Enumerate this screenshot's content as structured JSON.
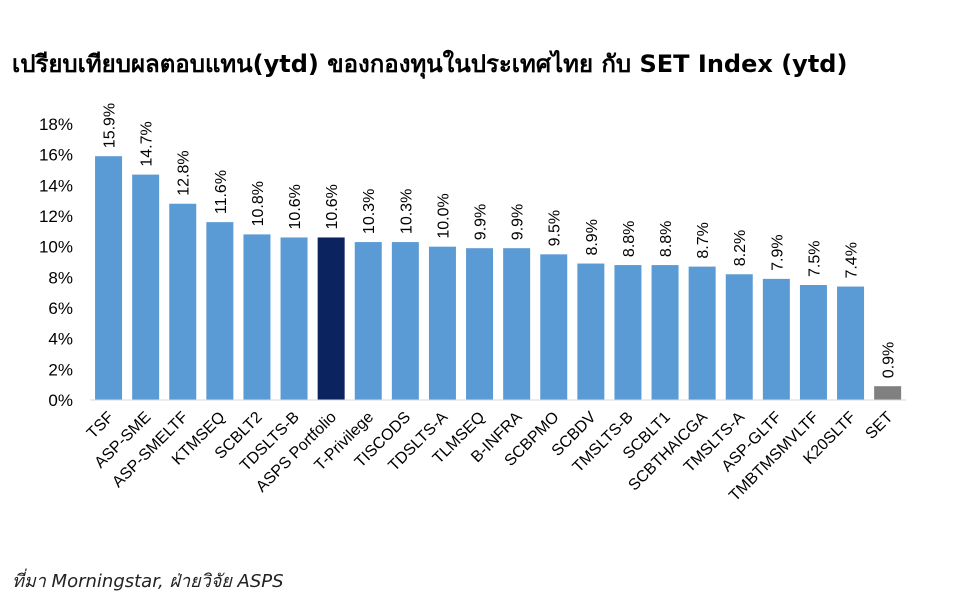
{
  "title": "เปรียบเทียบผลตอบแทน(ytd) ของกองทุนในประเทศไทย กับ SET Index (ytd)",
  "source": "ที่มา Morningstar, ฝ่ายวิจัย ASPS",
  "colors": {
    "bar": "#5b9bd5",
    "highlight": "#0b2460",
    "highlight_label": "#1f3d7a",
    "set": "#808080"
  },
  "chart_data": {
    "type": "bar",
    "categories": [
      "TSF",
      "ASP-SME",
      "ASP-SMELTF",
      "KTMSEQ",
      "SCBLT2",
      "TDSLTS-B",
      "ASPS Portfolio",
      "T-Privilege",
      "TISCODS",
      "TDSLTS-A",
      "TLMSEQ",
      "B-INFRA",
      "SCBPMO",
      "SCBDV",
      "TMSLTS-B",
      "SCBLT1",
      "SCBTHAICGA",
      "TMSLTS-A",
      "ASP-GLTF",
      "TMBTMSMVLTF",
      "K20SLTF",
      "SET"
    ],
    "values": [
      15.9,
      14.7,
      12.8,
      11.6,
      10.8,
      10.6,
      10.6,
      10.3,
      10.3,
      10.0,
      9.9,
      9.9,
      9.5,
      8.9,
      8.8,
      8.8,
      8.7,
      8.2,
      7.9,
      7.5,
      7.4,
      0.9
    ],
    "data_labels": [
      "15.9%",
      "14.7%",
      "12.8%",
      "11.6%",
      "10.8%",
      "10.6%",
      "10.6%",
      "10.3%",
      "10.3%",
      "10.0%",
      "9.9%",
      "9.9%",
      "9.5%",
      "8.9%",
      "8.8%",
      "8.8%",
      "8.7%",
      "8.2%",
      "7.9%",
      "7.5%",
      "7.4%",
      "0.9%"
    ],
    "highlight_category": "ASPS Portfolio",
    "benchmark_category": "SET",
    "ylim": [
      0,
      18
    ],
    "yticks": [
      "0%",
      "2%",
      "4%",
      "6%",
      "8%",
      "10%",
      "12%",
      "14%",
      "16%",
      "18%"
    ],
    "grid": false,
    "legend": "none",
    "xlabel": "",
    "ylabel": ""
  }
}
